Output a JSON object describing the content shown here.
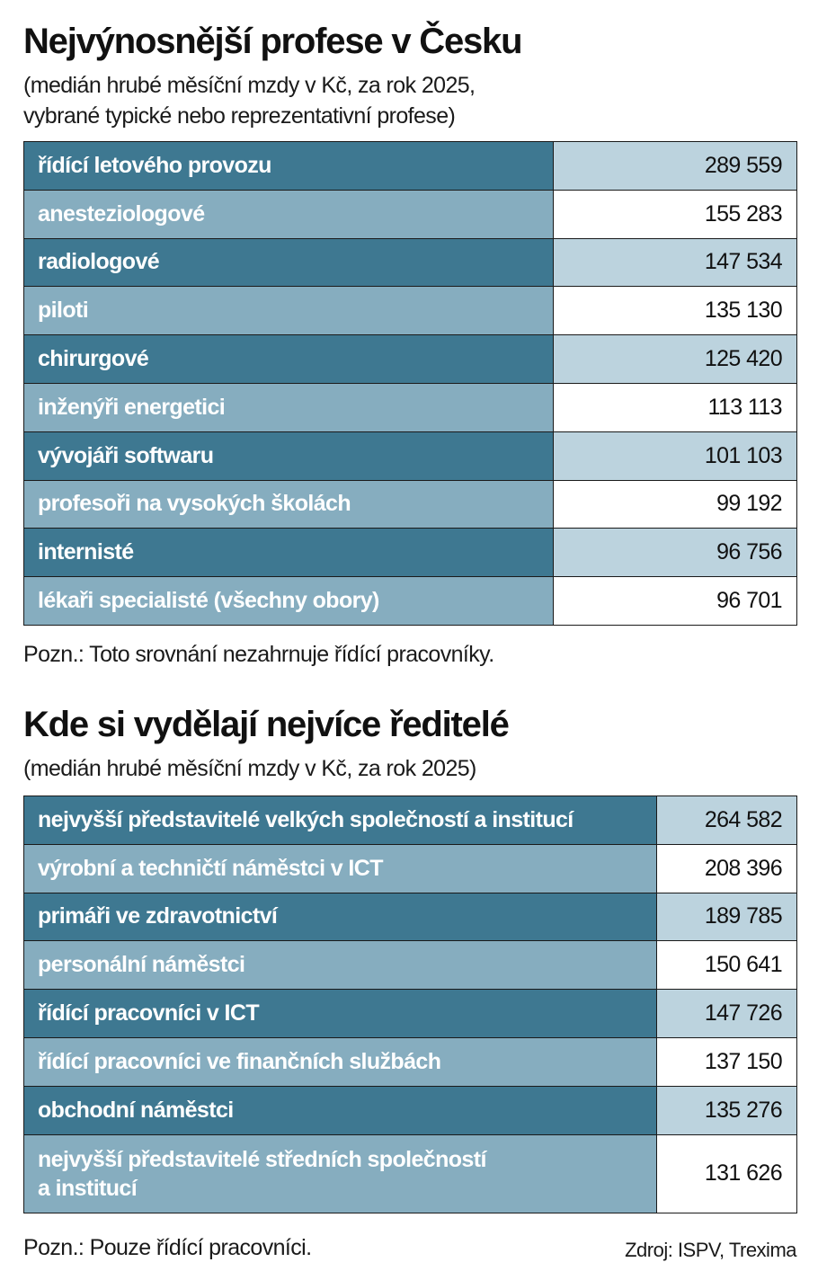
{
  "chart_data": [
    {
      "type": "table",
      "title": "Nejvýnosnější profese v Česku",
      "subtitle": [
        "(medián hrubé měsíční mzdy v Kč, za rok 2025,",
        "vybrané typické nebo reprezentativní profese)"
      ],
      "categories": [
        "řídící letového provozu",
        "anesteziologové",
        "radiologové",
        "piloti",
        "chirurgové",
        "inženýři energetici",
        "vývojáři softwaru",
        "profesoři na vysokých školách",
        "internisté",
        "lékaři specialisté (všechny obory)"
      ],
      "values": [
        289559,
        155283,
        147534,
        135130,
        125420,
        113113,
        101103,
        99192,
        96756,
        96701
      ],
      "value_labels": [
        "289 559",
        "155 283",
        "147 534",
        "135 130",
        "125 420",
        "113 113",
        "101 103",
        "99 192",
        "96 756",
        "96 701"
      ],
      "note": "Pozn.: Toto srovnání nezahrnuje řídící pracovníky."
    },
    {
      "type": "table",
      "title": "Kde si vydělají nejvíce ředitelé",
      "subtitle": [
        "(medián hrubé měsíční mzdy v Kč, za rok 2025)"
      ],
      "categories": [
        "nejvyšší představitelé velkých společností a institucí",
        "výrobní a techničtí náměstci v ICT",
        "primáři ve zdravotnictví",
        "personální náměstci",
        "řídící pracovníci v ICT",
        "řídící pracovníci ve finančních službách",
        "obchodní náměstci",
        "nejvyšší představitelé středních společností a institucí"
      ],
      "category_lines": [
        [
          "nejvyšší představitelé velkých společností a institucí"
        ],
        [
          "výrobní a techničtí náměstci v ICT"
        ],
        [
          "primáři ve zdravotnictví"
        ],
        [
          "personální náměstci"
        ],
        [
          "řídící pracovníci v ICT"
        ],
        [
          "řídící pracovníci ve finančních službách"
        ],
        [
          "obchodní náměstci"
        ],
        [
          "nejvyšší představitelé středních společností",
          "a institucí"
        ]
      ],
      "values": [
        264582,
        208396,
        189785,
        150641,
        147726,
        137150,
        135276,
        131626
      ],
      "value_labels": [
        "264 582",
        "208 396",
        "189 785",
        "150 641",
        "147 726",
        "137 150",
        "135 276",
        "131 626"
      ],
      "note": "Pozn.: Pouze řídící pracovníci."
    }
  ],
  "source": "Zdroj: ISPV, Trexima",
  "colors": {
    "dark_label": "#3e7891",
    "light_label": "#86adbf",
    "dark_value": "#bcd3de",
    "light_value": "#ffffff"
  }
}
